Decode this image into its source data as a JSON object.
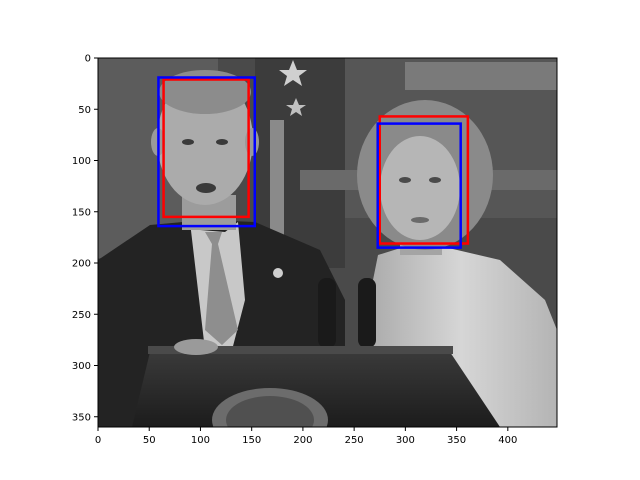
{
  "figure": {
    "image": {
      "width": 448,
      "height": 360,
      "grayscale": true,
      "description_colors": {
        "background_dark": "#2a2a2a",
        "background_mid": "#6e6e6e",
        "skin_light": "#b8b8b8",
        "suit_dark": "#1e1e1e",
        "jacket_light": "#c9c9c9",
        "podium": "#2b2b2b"
      }
    },
    "axes": {
      "x_ticks": [
        "0",
        "50",
        "100",
        "150",
        "200",
        "250",
        "300",
        "350",
        "400"
      ],
      "x_tick_values": [
        0,
        50,
        100,
        150,
        200,
        250,
        300,
        350,
        400
      ],
      "y_ticks": [
        "0",
        "50",
        "100",
        "150",
        "200",
        "250",
        "300",
        "350"
      ],
      "y_tick_values": [
        0,
        50,
        100,
        150,
        200,
        250,
        300,
        350
      ],
      "xlim": [
        0,
        448
      ],
      "ylim": [
        360,
        0
      ]
    },
    "boxes": [
      {
        "color": "#ff0000",
        "x0": 64,
        "y0": 21,
        "x1": 147,
        "y1": 155
      },
      {
        "color": "#0000ff",
        "x0": 59,
        "y0": 19,
        "x1": 153,
        "y1": 164
      },
      {
        "color": "#ff0000",
        "x0": 275,
        "y0": 57,
        "x1": 361,
        "y1": 181
      },
      {
        "color": "#0000ff",
        "x0": 273,
        "y0": 64,
        "x1": 354,
        "y1": 185
      }
    ]
  }
}
